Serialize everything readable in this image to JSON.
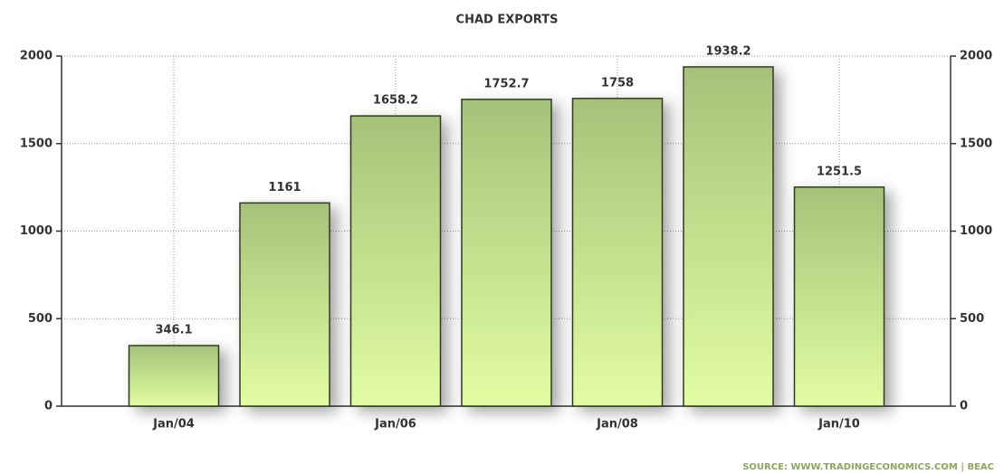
{
  "chart_data": {
    "type": "bar",
    "title": "CHAD EXPORTS",
    "categories": [
      "Jan/04",
      null,
      "Jan/06",
      null,
      "Jan/08",
      null,
      "Jan/10"
    ],
    "values": [
      346.1,
      1161,
      1658.2,
      1752.7,
      1758,
      1938.2,
      1251.5
    ],
    "color": "#b8d488",
    "ylim": [
      0,
      2000
    ],
    "yticks": [
      0,
      500,
      1000,
      1500,
      2000
    ],
    "grid": true,
    "source": "SOURCE:  WWW.TRADINGECONOMICS.COM  |  BEAC"
  }
}
